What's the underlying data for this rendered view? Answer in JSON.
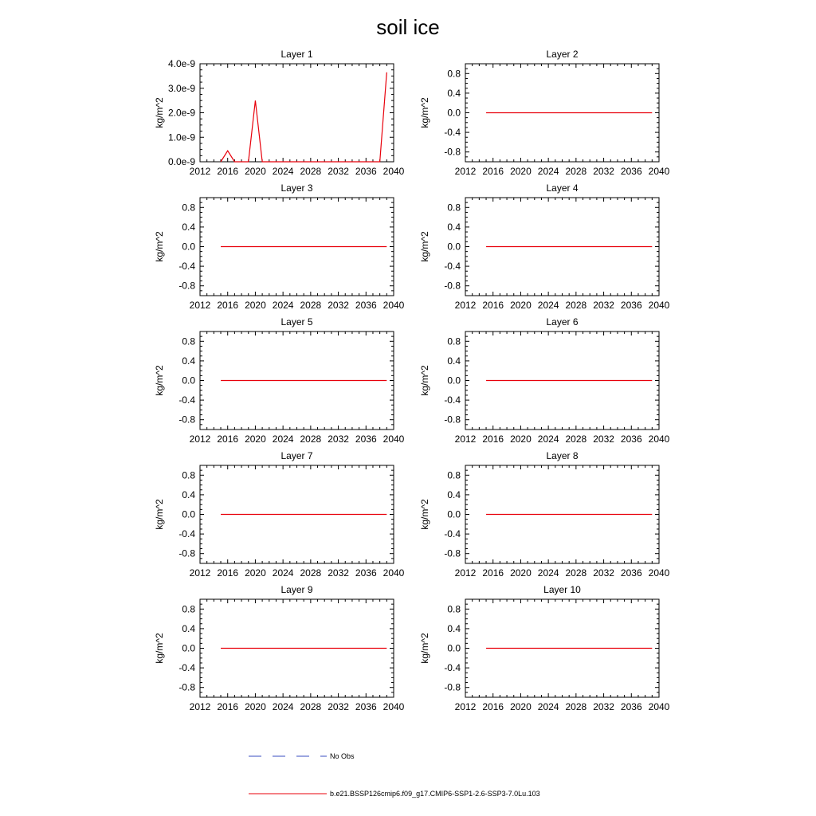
{
  "title": "soil ice",
  "chart_data": [
    {
      "type": "line",
      "title": "Layer 1",
      "ylabel": "kg/m^2",
      "xlim": [
        2012,
        2040
      ],
      "xticks": [
        2012,
        2016,
        2020,
        2024,
        2028,
        2032,
        2036,
        2040
      ],
      "ylim": [
        0,
        4e-09
      ],
      "yticks": [
        0,
        1e-09,
        2e-09,
        3e-09,
        4e-09
      ],
      "ytick_labels": [
        "0.0e-9",
        "1.0e-9",
        "2.0e-9",
        "3.0e-9",
        "4.0e-9"
      ],
      "series": [
        {
          "name": "b.e21.BSSP126cmip6.f09_g17.CMIP6-SSP1-2.6-SSP3-7.0Lu.103",
          "color": "#e8000b",
          "x": [
            2015,
            2016,
            2017,
            2018,
            2019,
            2020,
            2021,
            2022,
            2023,
            2024,
            2025,
            2026,
            2027,
            2028,
            2029,
            2030,
            2031,
            2032,
            2033,
            2034,
            2035,
            2036,
            2037,
            2038,
            2039
          ],
          "y": [
            0,
            4.5e-10,
            0,
            0,
            0,
            2.5e-09,
            0,
            0,
            0,
            0,
            0,
            0,
            0,
            0,
            0,
            0,
            0,
            0,
            0,
            0,
            0,
            0,
            0,
            0,
            3.65e-09
          ]
        }
      ]
    },
    {
      "type": "line",
      "title": "Layer 2",
      "ylabel": "kg/m^2",
      "xlim": [
        2012,
        2040
      ],
      "xticks": [
        2012,
        2016,
        2020,
        2024,
        2028,
        2032,
        2036,
        2040
      ],
      "ylim": [
        -1.0,
        1.0
      ],
      "yticks": [
        -0.8,
        -0.4,
        0.0,
        0.4,
        0.8
      ],
      "ytick_labels": [
        "-0.8",
        "-0.4",
        "0.0",
        "0.4",
        "0.8"
      ],
      "series": [
        {
          "name": "b.e21.BSSP126cmip6.f09_g17.CMIP6-SSP1-2.6-SSP3-7.0Lu.103",
          "color": "#e8000b",
          "x": [
            2015,
            2039
          ],
          "y": [
            0,
            0
          ]
        }
      ]
    },
    {
      "type": "line",
      "title": "Layer 3",
      "ylabel": "kg/m^2",
      "xlim": [
        2012,
        2040
      ],
      "xticks": [
        2012,
        2016,
        2020,
        2024,
        2028,
        2032,
        2036,
        2040
      ],
      "ylim": [
        -1.0,
        1.0
      ],
      "yticks": [
        -0.8,
        -0.4,
        0.0,
        0.4,
        0.8
      ],
      "ytick_labels": [
        "-0.8",
        "-0.4",
        "0.0",
        "0.4",
        "0.8"
      ],
      "series": [
        {
          "name": "b.e21.BSSP126cmip6.f09_g17.CMIP6-SSP1-2.6-SSP3-7.0Lu.103",
          "color": "#e8000b",
          "x": [
            2015,
            2039
          ],
          "y": [
            0,
            0
          ]
        }
      ]
    },
    {
      "type": "line",
      "title": "Layer 4",
      "ylabel": "kg/m^2",
      "xlim": [
        2012,
        2040
      ],
      "xticks": [
        2012,
        2016,
        2020,
        2024,
        2028,
        2032,
        2036,
        2040
      ],
      "ylim": [
        -1.0,
        1.0
      ],
      "yticks": [
        -0.8,
        -0.4,
        0.0,
        0.4,
        0.8
      ],
      "ytick_labels": [
        "-0.8",
        "-0.4",
        "0.0",
        "0.4",
        "0.8"
      ],
      "series": [
        {
          "name": "b.e21.BSSP126cmip6.f09_g17.CMIP6-SSP1-2.6-SSP3-7.0Lu.103",
          "color": "#e8000b",
          "x": [
            2015,
            2039
          ],
          "y": [
            0,
            0
          ]
        }
      ]
    },
    {
      "type": "line",
      "title": "Layer 5",
      "ylabel": "kg/m^2",
      "xlim": [
        2012,
        2040
      ],
      "xticks": [
        2012,
        2016,
        2020,
        2024,
        2028,
        2032,
        2036,
        2040
      ],
      "ylim": [
        -1.0,
        1.0
      ],
      "yticks": [
        -0.8,
        -0.4,
        0.0,
        0.4,
        0.8
      ],
      "ytick_labels": [
        "-0.8",
        "-0.4",
        "0.0",
        "0.4",
        "0.8"
      ],
      "series": [
        {
          "name": "b.e21.BSSP126cmip6.f09_g17.CMIP6-SSP1-2.6-SSP3-7.0Lu.103",
          "color": "#e8000b",
          "x": [
            2015,
            2039
          ],
          "y": [
            0,
            0
          ]
        }
      ]
    },
    {
      "type": "line",
      "title": "Layer 6",
      "ylabel": "kg/m^2",
      "xlim": [
        2012,
        2040
      ],
      "xticks": [
        2012,
        2016,
        2020,
        2024,
        2028,
        2032,
        2036,
        2040
      ],
      "ylim": [
        -1.0,
        1.0
      ],
      "yticks": [
        -0.8,
        -0.4,
        0.0,
        0.4,
        0.8
      ],
      "ytick_labels": [
        "-0.8",
        "-0.4",
        "0.0",
        "0.4",
        "0.8"
      ],
      "series": [
        {
          "name": "b.e21.BSSP126cmip6.f09_g17.CMIP6-SSP1-2.6-SSP3-7.0Lu.103",
          "color": "#e8000b",
          "x": [
            2015,
            2039
          ],
          "y": [
            0,
            0
          ]
        }
      ]
    },
    {
      "type": "line",
      "title": "Layer 7",
      "ylabel": "kg/m^2",
      "xlim": [
        2012,
        2040
      ],
      "xticks": [
        2012,
        2016,
        2020,
        2024,
        2028,
        2032,
        2036,
        2040
      ],
      "ylim": [
        -1.0,
        1.0
      ],
      "yticks": [
        -0.8,
        -0.4,
        0.0,
        0.4,
        0.8
      ],
      "ytick_labels": [
        "-0.8",
        "-0.4",
        "0.0",
        "0.4",
        "0.8"
      ],
      "series": [
        {
          "name": "b.e21.BSSP126cmip6.f09_g17.CMIP6-SSP1-2.6-SSP3-7.0Lu.103",
          "color": "#e8000b",
          "x": [
            2015,
            2039
          ],
          "y": [
            0,
            0
          ]
        }
      ]
    },
    {
      "type": "line",
      "title": "Layer 8",
      "ylabel": "kg/m^2",
      "xlim": [
        2012,
        2040
      ],
      "xticks": [
        2012,
        2016,
        2020,
        2024,
        2028,
        2032,
        2036,
        2040
      ],
      "ylim": [
        -1.0,
        1.0
      ],
      "yticks": [
        -0.8,
        -0.4,
        0.0,
        0.4,
        0.8
      ],
      "ytick_labels": [
        "-0.8",
        "-0.4",
        "0.0",
        "0.4",
        "0.8"
      ],
      "series": [
        {
          "name": "b.e21.BSSP126cmip6.f09_g17.CMIP6-SSP1-2.6-SSP3-7.0Lu.103",
          "color": "#e8000b",
          "x": [
            2015,
            2039
          ],
          "y": [
            0,
            0
          ]
        }
      ]
    },
    {
      "type": "line",
      "title": "Layer 9",
      "ylabel": "kg/m^2",
      "xlim": [
        2012,
        2040
      ],
      "xticks": [
        2012,
        2016,
        2020,
        2024,
        2028,
        2032,
        2036,
        2040
      ],
      "ylim": [
        -1.0,
        1.0
      ],
      "yticks": [
        -0.8,
        -0.4,
        0.0,
        0.4,
        0.8
      ],
      "ytick_labels": [
        "-0.8",
        "-0.4",
        "0.0",
        "0.4",
        "0.8"
      ],
      "series": [
        {
          "name": "b.e21.BSSP126cmip6.f09_g17.CMIP6-SSP1-2.6-SSP3-7.0Lu.103",
          "color": "#e8000b",
          "x": [
            2015,
            2039
          ],
          "y": [
            0,
            0
          ]
        }
      ]
    },
    {
      "type": "line",
      "title": "Layer 10",
      "ylabel": "kg/m^2",
      "xlim": [
        2012,
        2040
      ],
      "xticks": [
        2012,
        2016,
        2020,
        2024,
        2028,
        2032,
        2036,
        2040
      ],
      "ylim": [
        -1.0,
        1.0
      ],
      "yticks": [
        -0.8,
        -0.4,
        0.0,
        0.4,
        0.8
      ],
      "ytick_labels": [
        "-0.8",
        "-0.4",
        "0.0",
        "0.4",
        "0.8"
      ],
      "series": [
        {
          "name": "b.e21.BSSP126cmip6.f09_g17.CMIP6-SSP1-2.6-SSP3-7.0Lu.103",
          "color": "#e8000b",
          "x": [
            2015,
            2039
          ],
          "y": [
            0,
            0
          ]
        }
      ]
    }
  ],
  "legend": [
    {
      "label": "No Obs",
      "style": "dashed",
      "color": "#3a4ec0"
    },
    {
      "label": "b.e21.BSSP126cmip6.f09_g17.CMIP6-SSP1-2.6-SSP3-7.0Lu.103",
      "style": "solid",
      "color": "#e8000b"
    }
  ]
}
